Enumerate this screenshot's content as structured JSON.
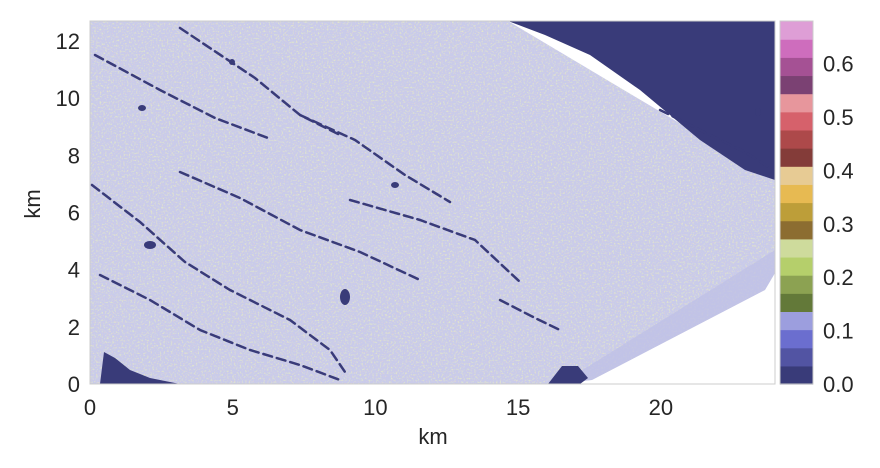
{
  "chart_data": {
    "type": "heatmap",
    "title": "",
    "xlabel": "km",
    "ylabel": "km",
    "xlim": [
      0,
      24
    ],
    "ylim": [
      0,
      12.7
    ],
    "x_ticks": [
      "0",
      "5",
      "10",
      "15",
      "20"
    ],
    "x_tick_values": [
      0,
      5,
      10,
      15,
      20
    ],
    "y_ticks": [
      "0",
      "2",
      "4",
      "6",
      "8",
      "10",
      "12"
    ],
    "y_tick_values": [
      0,
      2,
      4,
      6,
      8,
      10,
      12
    ],
    "grid": false,
    "colorbar": {
      "range": [
        0.0,
        0.68
      ],
      "ticks": [
        "0.0",
        "0.1",
        "0.2",
        "0.3",
        "0.4",
        "0.5",
        "0.6"
      ],
      "tick_values": [
        0.0,
        0.1,
        0.2,
        0.3,
        0.4,
        0.5,
        0.6
      ],
      "colormap": "tab20b",
      "colors": [
        "#393b79",
        "#5254a3",
        "#6b6ecf",
        "#9c9ede",
        "#637939",
        "#8ca252",
        "#b5cf6b",
        "#cedb9c",
        "#8c6d31",
        "#bd9e39",
        "#e7ba52",
        "#e7cb94",
        "#843c39",
        "#ad494a",
        "#d6616b",
        "#e7969c",
        "#7b4173",
        "#a55194",
        "#ce6dbd",
        "#de9ed6"
      ]
    },
    "field": {
      "dominant_value": 0.1,
      "dominant_color": "#c9cbea",
      "noise_colors": [
        "#cedb9c",
        "#e7cb94",
        "#b5cf6b",
        "#e7969c"
      ],
      "empty_region": "lower-right wedge",
      "low_value_region": "upper-right corner",
      "streak_direction": "upper-left to lower-right"
    }
  }
}
